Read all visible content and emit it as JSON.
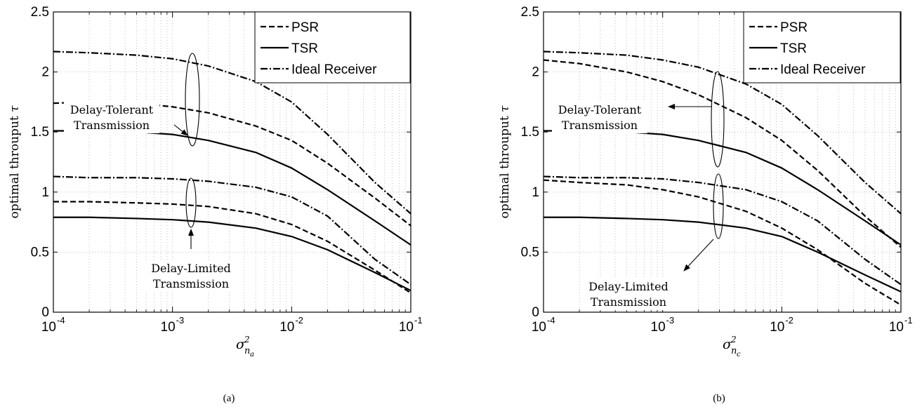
{
  "chart_data": [
    {
      "type": "line",
      "caption": "(a)",
      "ylabel": "optimal throuput",
      "ylabel_symbol": "τ",
      "xlabel_base": "σ",
      "xlabel_sup": "2",
      "xlabel_sub": "n",
      "xlabel_subsub": "a",
      "xscale": "log",
      "xlim": [
        0.0001,
        0.1
      ],
      "ylim": [
        0,
        2.5
      ],
      "grid": true,
      "legend_position": "top-right",
      "x_ticks": [
        {
          "base": "10",
          "exp": "-4",
          "value": 0.0001
        },
        {
          "base": "10",
          "exp": "-3",
          "value": 0.001
        },
        {
          "base": "10",
          "exp": "-2",
          "value": 0.01
        },
        {
          "base": "10",
          "exp": "-1",
          "value": 0.1
        }
      ],
      "y_ticks": [
        {
          "label": "0",
          "value": 0
        },
        {
          "label": "0.5",
          "value": 0.5
        },
        {
          "label": "1",
          "value": 1
        },
        {
          "label": "1.5",
          "value": 1.5
        },
        {
          "label": "2",
          "value": 2
        },
        {
          "label": "2.5",
          "value": 2.5
        }
      ],
      "legend": [
        {
          "label": "PSR",
          "style": "dashed"
        },
        {
          "label": "TSR",
          "style": "solid"
        },
        {
          "label": "Ideal Receiver",
          "style": "dashdot"
        }
      ],
      "annotations": [
        {
          "lines": [
            "Delay-Tolerant",
            "Transmission"
          ]
        },
        {
          "lines": [
            "Delay-Limited",
            "Transmission"
          ]
        }
      ],
      "series": [
        {
          "group": "Delay-Tolerant",
          "legend_ref": "Ideal Receiver",
          "style": "dashdot",
          "x": [
            0.0001,
            0.0002,
            0.0005,
            0.001,
            0.002,
            0.005,
            0.01,
            0.02,
            0.05,
            0.1
          ],
          "y": [
            2.17,
            2.16,
            2.14,
            2.11,
            2.05,
            1.92,
            1.75,
            1.48,
            1.08,
            0.82
          ]
        },
        {
          "group": "Delay-Tolerant",
          "legend_ref": "PSR",
          "style": "dashed",
          "x": [
            0.0001,
            0.0002,
            0.0005,
            0.001,
            0.002,
            0.005,
            0.01,
            0.02,
            0.05,
            0.1
          ],
          "y": [
            1.74,
            1.75,
            1.74,
            1.71,
            1.66,
            1.55,
            1.43,
            1.24,
            0.95,
            0.72
          ]
        },
        {
          "group": "Delay-Tolerant",
          "legend_ref": "TSR",
          "style": "solid",
          "x": [
            0.0001,
            0.0002,
            0.0005,
            0.001,
            0.002,
            0.005,
            0.01,
            0.02,
            0.05,
            0.1
          ],
          "y": [
            1.51,
            1.51,
            1.5,
            1.48,
            1.43,
            1.33,
            1.2,
            1.02,
            0.76,
            0.56
          ]
        },
        {
          "group": "Delay-Limited",
          "legend_ref": "Ideal Receiver",
          "style": "dashdot",
          "x": [
            0.0001,
            0.0002,
            0.0005,
            0.001,
            0.002,
            0.005,
            0.01,
            0.02,
            0.05,
            0.1
          ],
          "y": [
            1.13,
            1.12,
            1.12,
            1.11,
            1.09,
            1.04,
            0.96,
            0.8,
            0.44,
            0.23
          ]
        },
        {
          "group": "Delay-Limited",
          "legend_ref": "PSR",
          "style": "dashed",
          "x": [
            0.0001,
            0.0002,
            0.0005,
            0.001,
            0.002,
            0.005,
            0.01,
            0.02,
            0.05,
            0.1
          ],
          "y": [
            0.92,
            0.92,
            0.91,
            0.9,
            0.88,
            0.82,
            0.73,
            0.59,
            0.35,
            0.16
          ]
        },
        {
          "group": "Delay-Limited",
          "legend_ref": "TSR",
          "style": "solid",
          "x": [
            0.0001,
            0.0002,
            0.0005,
            0.001,
            0.002,
            0.005,
            0.01,
            0.02,
            0.05,
            0.1
          ],
          "y": [
            0.79,
            0.79,
            0.78,
            0.77,
            0.75,
            0.7,
            0.63,
            0.52,
            0.33,
            0.18
          ]
        }
      ]
    },
    {
      "type": "line",
      "caption": "(b)",
      "ylabel": "optimal throuput",
      "ylabel_symbol": "τ",
      "xlabel_base": "σ",
      "xlabel_sup": "2",
      "xlabel_sub": "n",
      "xlabel_subsub": "c",
      "xscale": "log",
      "xlim": [
        0.0001,
        0.1
      ],
      "ylim": [
        0,
        2.5
      ],
      "grid": true,
      "legend_position": "top-right",
      "x_ticks": [
        {
          "base": "10",
          "exp": "-4",
          "value": 0.0001
        },
        {
          "base": "10",
          "exp": "-3",
          "value": 0.001
        },
        {
          "base": "10",
          "exp": "-2",
          "value": 0.01
        },
        {
          "base": "10",
          "exp": "-1",
          "value": 0.1
        }
      ],
      "y_ticks": [
        {
          "label": "0",
          "value": 0
        },
        {
          "label": "0.5",
          "value": 0.5
        },
        {
          "label": "1",
          "value": 1
        },
        {
          "label": "1.5",
          "value": 1.5
        },
        {
          "label": "2",
          "value": 2
        },
        {
          "label": "2.5",
          "value": 2.5
        }
      ],
      "legend": [
        {
          "label": "PSR",
          "style": "dashed"
        },
        {
          "label": "TSR",
          "style": "solid"
        },
        {
          "label": "Ideal Receiver",
          "style": "dashdot"
        }
      ],
      "annotations": [
        {
          "lines": [
            "Delay-Tolerant",
            "Transmission"
          ]
        },
        {
          "lines": [
            "Delay-Limited",
            "Transmission"
          ]
        }
      ],
      "series": [
        {
          "group": "Delay-Tolerant",
          "legend_ref": "Ideal Receiver",
          "style": "dashdot",
          "x": [
            0.0001,
            0.0002,
            0.0005,
            0.001,
            0.002,
            0.005,
            0.01,
            0.02,
            0.05,
            0.1
          ],
          "y": [
            2.17,
            2.16,
            2.14,
            2.1,
            2.04,
            1.9,
            1.73,
            1.47,
            1.08,
            0.82
          ]
        },
        {
          "group": "Delay-Tolerant",
          "legend_ref": "PSR",
          "style": "dashed",
          "x": [
            0.0001,
            0.0002,
            0.0005,
            0.001,
            0.002,
            0.005,
            0.01,
            0.02,
            0.05,
            0.1
          ],
          "y": [
            2.1,
            2.07,
            2.0,
            1.92,
            1.81,
            1.62,
            1.43,
            1.18,
            0.8,
            0.54
          ]
        },
        {
          "group": "Delay-Tolerant",
          "legend_ref": "TSR",
          "style": "solid",
          "x": [
            0.0001,
            0.0002,
            0.0005,
            0.001,
            0.002,
            0.005,
            0.01,
            0.02,
            0.05,
            0.1
          ],
          "y": [
            1.51,
            1.51,
            1.5,
            1.48,
            1.43,
            1.33,
            1.2,
            1.02,
            0.76,
            0.56
          ]
        },
        {
          "group": "Delay-Limited",
          "legend_ref": "Ideal Receiver",
          "style": "dashdot",
          "x": [
            0.0001,
            0.0002,
            0.0005,
            0.001,
            0.002,
            0.005,
            0.01,
            0.02,
            0.05,
            0.1
          ],
          "y": [
            1.13,
            1.12,
            1.12,
            1.11,
            1.08,
            1.02,
            0.92,
            0.76,
            0.44,
            0.23
          ]
        },
        {
          "group": "Delay-Limited",
          "legend_ref": "PSR",
          "style": "dashed",
          "x": [
            0.0001,
            0.0002,
            0.0005,
            0.001,
            0.002,
            0.005,
            0.01,
            0.02,
            0.05,
            0.1
          ],
          "y": [
            1.1,
            1.08,
            1.06,
            1.02,
            0.96,
            0.84,
            0.7,
            0.52,
            0.24,
            0.06
          ]
        },
        {
          "group": "Delay-Limited",
          "legend_ref": "TSR",
          "style": "solid",
          "x": [
            0.0001,
            0.0002,
            0.0005,
            0.001,
            0.002,
            0.005,
            0.01,
            0.02,
            0.05,
            0.1
          ],
          "y": [
            0.79,
            0.79,
            0.78,
            0.77,
            0.75,
            0.7,
            0.63,
            0.5,
            0.31,
            0.17
          ]
        }
      ]
    }
  ]
}
